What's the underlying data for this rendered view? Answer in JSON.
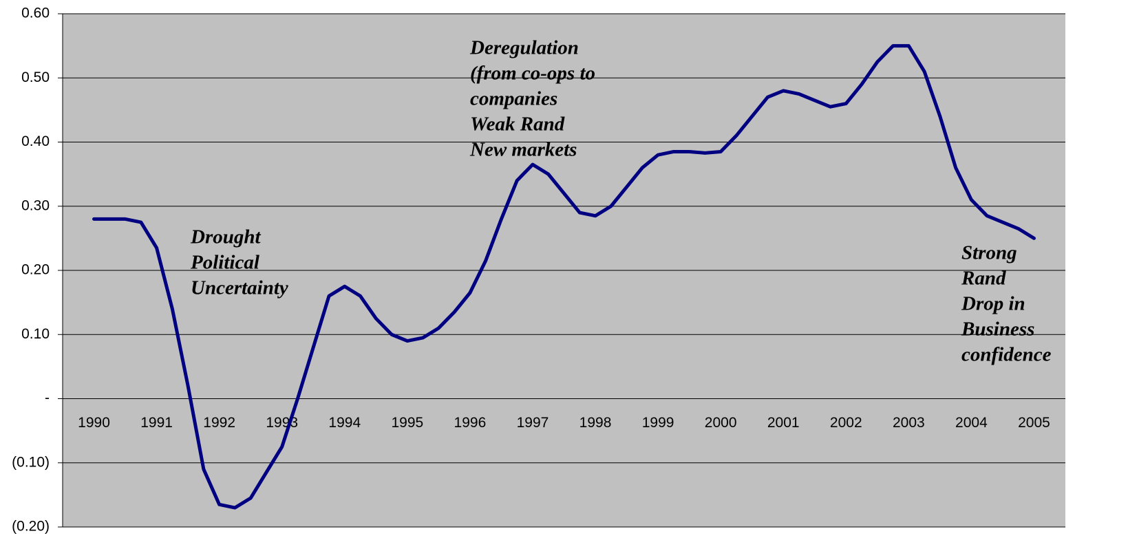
{
  "chart_data": {
    "type": "line",
    "x": [
      1990,
      1990.25,
      1990.5,
      1990.75,
      1991,
      1991.25,
      1991.5,
      1991.75,
      1992,
      1992.25,
      1992.5,
      1992.75,
      1993,
      1993.25,
      1993.5,
      1993.75,
      1994,
      1994.25,
      1994.5,
      1994.75,
      1995,
      1995.25,
      1995.5,
      1995.75,
      1996,
      1996.25,
      1996.5,
      1996.75,
      1997,
      1997.25,
      1997.5,
      1997.75,
      1998,
      1998.25,
      1998.5,
      1998.75,
      1999,
      1999.25,
      1999.5,
      1999.75,
      2000,
      2000.25,
      2000.5,
      2000.75,
      2001,
      2001.25,
      2001.5,
      2001.75,
      2002,
      2002.25,
      2002.5,
      2002.75,
      2003,
      2003.25,
      2003.5,
      2003.75,
      2004,
      2004.25,
      2004.5,
      2004.75,
      2005
    ],
    "series": [
      {
        "color": "#000080",
        "values": [
          0.28,
          0.28,
          0.28,
          0.275,
          0.235,
          0.14,
          0.02,
          -0.11,
          -0.165,
          -0.17,
          -0.155,
          -0.115,
          -0.075,
          0.0,
          0.08,
          0.16,
          0.175,
          0.16,
          0.125,
          0.1,
          0.09,
          0.095,
          0.11,
          0.135,
          0.165,
          0.215,
          0.28,
          0.34,
          0.365,
          0.35,
          0.32,
          0.29,
          0.285,
          0.3,
          0.33,
          0.36,
          0.38,
          0.385,
          0.385,
          0.383,
          0.385,
          0.41,
          0.44,
          0.47,
          0.48,
          0.475,
          0.465,
          0.455,
          0.46,
          0.49,
          0.525,
          0.55,
          0.55,
          0.51,
          0.44,
          0.36,
          0.31,
          0.285,
          0.275,
          0.265,
          0.25
        ]
      }
    ],
    "xlim": [
      1989.5,
      2005.5
    ],
    "xticks": [
      1990,
      1991,
      1992,
      1993,
      1994,
      1995,
      1996,
      1997,
      1998,
      1999,
      2000,
      2001,
      2002,
      2003,
      2004,
      2005
    ],
    "ylim": [
      -0.2,
      0.6
    ],
    "yticks": [
      {
        "value": -0.2,
        "label": "(0.20)"
      },
      {
        "value": -0.1,
        "label": "(0.10)"
      },
      {
        "value": 0,
        "label": "-"
      },
      {
        "value": 0.1,
        "label": "0.10"
      },
      {
        "value": 0.2,
        "label": "0.20"
      },
      {
        "value": 0.3,
        "label": "0.30"
      },
      {
        "value": 0.4,
        "label": "0.40"
      },
      {
        "value": 0.5,
        "label": "0.50"
      },
      {
        "value": 0.6,
        "label": "0.60"
      }
    ],
    "grid": true,
    "annotations": [
      [
        "Drought",
        "Political",
        "Uncertainty"
      ],
      [
        "Deregulation",
        "(from co-ops to",
        "companies",
        "Weak Rand",
        "New markets"
      ],
      [
        "Strong",
        "Rand",
        "Drop in",
        "Business",
        "confidence"
      ]
    ]
  }
}
